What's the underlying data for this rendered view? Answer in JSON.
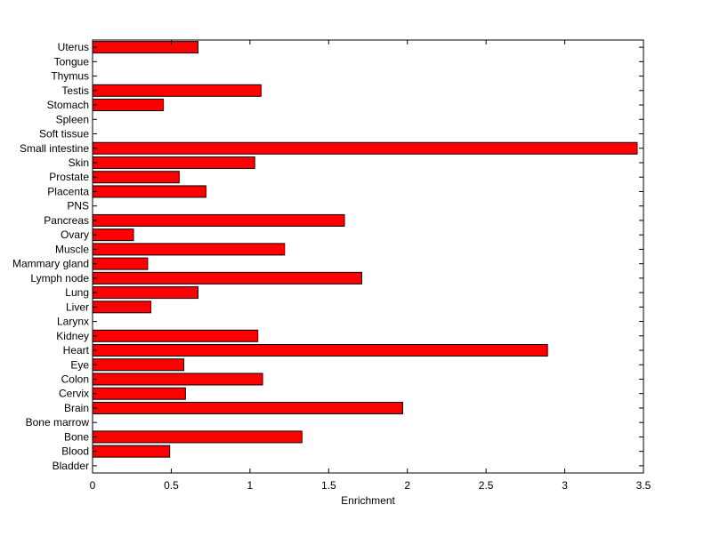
{
  "chart_data": {
    "type": "bar",
    "orientation": "horizontal",
    "title": "",
    "xlabel": "Enrichment",
    "ylabel": "",
    "xlim": [
      0,
      3.5
    ],
    "x_ticks": [
      "0",
      "0.5",
      "1",
      "1.5",
      "2",
      "2.5",
      "3",
      "3.5"
    ],
    "grid": false,
    "legend": "none",
    "bar_color": "#ff0000",
    "bar_edge_color": "#000000",
    "categories": [
      "Bladder",
      "Blood",
      "Bone",
      "Bone marrow",
      "Brain",
      "Cervix",
      "Colon",
      "Eye",
      "Heart",
      "Kidney",
      "Larynx",
      "Liver",
      "Lung",
      "Lymph node",
      "Mammary gland",
      "Muscle",
      "Ovary",
      "Pancreas",
      "PNS",
      "Placenta",
      "Prostate",
      "Skin",
      "Small intestine",
      "Soft tissue",
      "Spleen",
      "Stomach",
      "Testis",
      "Thymus",
      "Tongue",
      "Uterus"
    ],
    "values": [
      0,
      0.49,
      1.33,
      0,
      1.97,
      0.59,
      1.08,
      0.58,
      2.89,
      1.05,
      0,
      0.37,
      0.67,
      1.71,
      0.35,
      1.22,
      0.26,
      1.6,
      0,
      0.72,
      0.55,
      1.03,
      3.46,
      0,
      0,
      0.45,
      1.07,
      0,
      0,
      0.67
    ]
  }
}
